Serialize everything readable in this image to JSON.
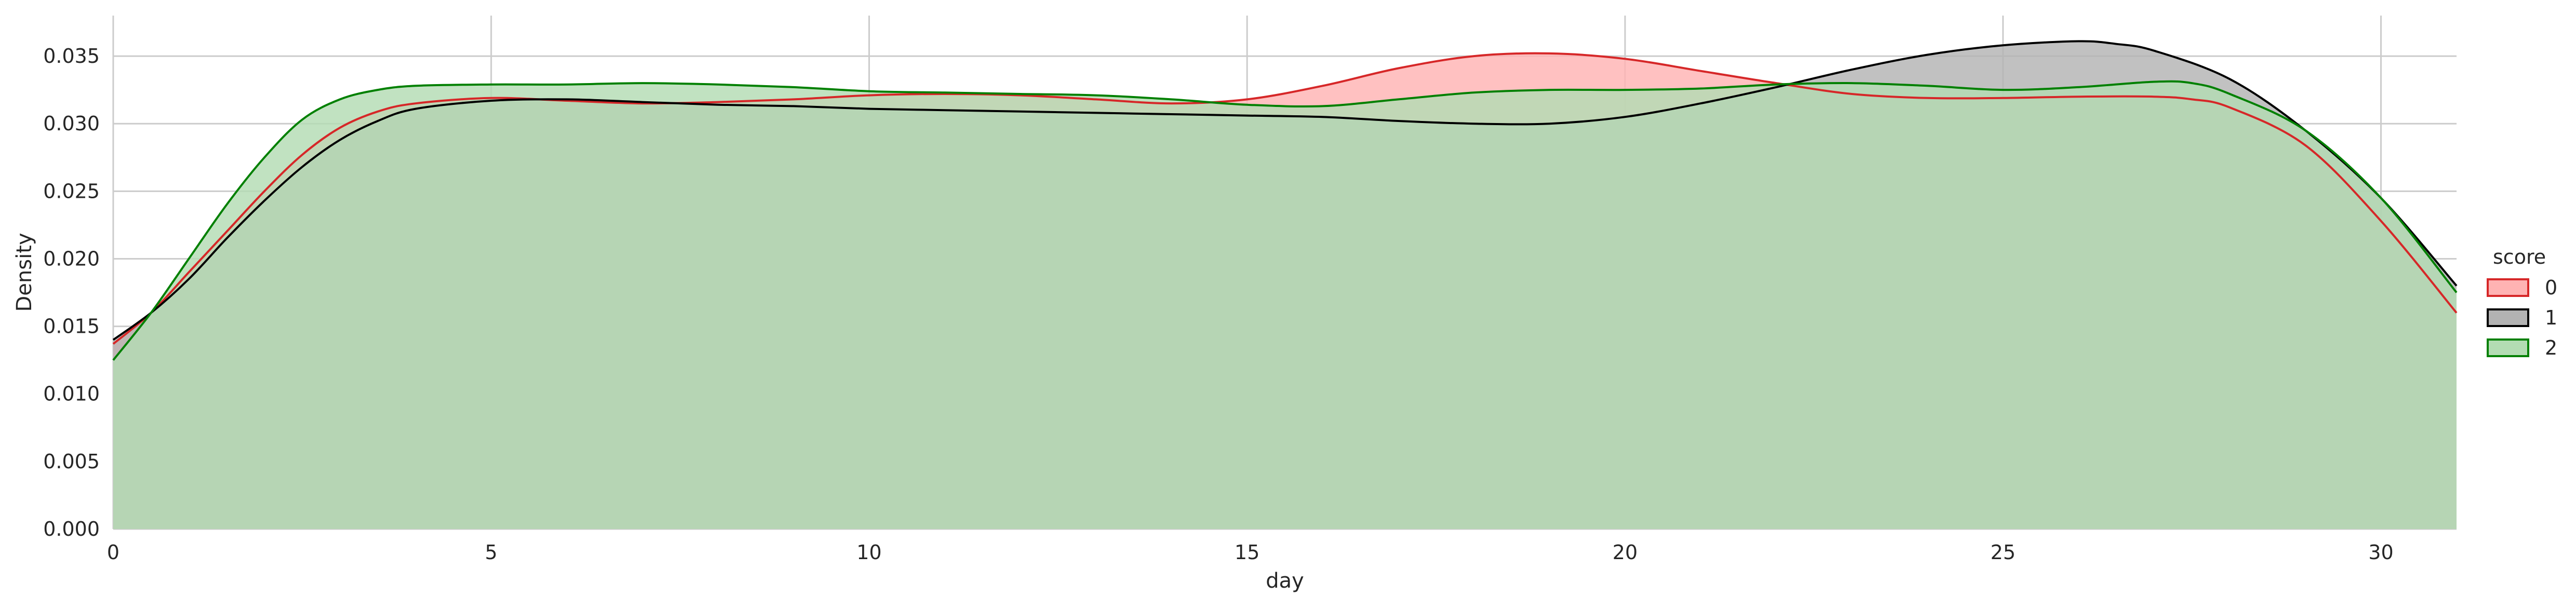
{
  "chart_data": {
    "type": "area",
    "xlabel": "day",
    "ylabel": "Density",
    "xlim": [
      0,
      31
    ],
    "ylim": [
      0,
      0.038
    ],
    "x_ticks": [
      "0",
      "5",
      "10",
      "15",
      "20",
      "25",
      "30"
    ],
    "y_ticks": [
      "0.000",
      "0.005",
      "0.010",
      "0.015",
      "0.020",
      "0.025",
      "0.030",
      "0.035"
    ],
    "grid": true,
    "legend": {
      "title": "score",
      "placement": "right"
    },
    "series": [
      {
        "name": "0",
        "color": "#d62728",
        "fill": "#ffb3b3",
        "x": [
          0,
          0.5,
          1,
          1.5,
          2,
          2.5,
          3,
          3.5,
          4,
          5,
          6,
          7,
          8,
          9,
          10,
          11,
          12,
          13,
          14,
          15,
          16,
          17,
          18,
          19,
          20,
          21,
          22,
          23,
          24,
          25,
          26,
          27,
          27.5,
          28,
          29,
          30,
          31
        ],
        "values": [
          0.0137,
          0.016,
          0.019,
          0.022,
          0.025,
          0.0277,
          0.0297,
          0.0309,
          0.0315,
          0.0319,
          0.0317,
          0.0315,
          0.0316,
          0.0318,
          0.0321,
          0.0322,
          0.0321,
          0.0318,
          0.0315,
          0.0318,
          0.0328,
          0.0341,
          0.035,
          0.0352,
          0.0348,
          0.0339,
          0.033,
          0.0322,
          0.0319,
          0.0319,
          0.032,
          0.032,
          0.0318,
          0.0312,
          0.0284,
          0.0228,
          0.016
        ]
      },
      {
        "name": "1",
        "color": "#000000",
        "fill": "#b3b3b3",
        "x": [
          0,
          0.5,
          1,
          1.5,
          2,
          2.5,
          3,
          3.5,
          4,
          5,
          6,
          7,
          8,
          9,
          10,
          11,
          12,
          13,
          14,
          15,
          16,
          17,
          18,
          19,
          20,
          21,
          22,
          23,
          24,
          25,
          26,
          26.5,
          27,
          28,
          29,
          30,
          31
        ],
        "values": [
          0.014,
          0.016,
          0.0185,
          0.0215,
          0.0243,
          0.0268,
          0.0288,
          0.0302,
          0.0311,
          0.0317,
          0.0318,
          0.0316,
          0.0314,
          0.0313,
          0.0311,
          0.031,
          0.0309,
          0.0308,
          0.0307,
          0.0306,
          0.0305,
          0.0302,
          0.03,
          0.03,
          0.0305,
          0.0315,
          0.0327,
          0.034,
          0.0351,
          0.0358,
          0.0361,
          0.0359,
          0.0354,
          0.0333,
          0.0295,
          0.0245,
          0.018
        ]
      },
      {
        "name": "2",
        "color": "#008000",
        "fill": "#b3dcb3",
        "x": [
          0,
          0.5,
          1,
          1.5,
          2,
          2.5,
          3,
          3.5,
          4,
          5,
          6,
          7,
          8,
          9,
          10,
          11,
          12,
          13,
          14,
          15,
          16,
          17,
          18,
          19,
          20,
          21,
          22,
          23,
          24,
          25,
          26,
          27,
          27.5,
          28,
          29,
          30,
          31
        ],
        "values": [
          0.0125,
          0.016,
          0.02,
          0.024,
          0.0275,
          0.0303,
          0.0318,
          0.0325,
          0.0328,
          0.0329,
          0.0329,
          0.033,
          0.0329,
          0.0327,
          0.0324,
          0.0323,
          0.0322,
          0.0321,
          0.0318,
          0.0314,
          0.0313,
          0.0318,
          0.0323,
          0.0325,
          0.0325,
          0.0326,
          0.0329,
          0.033,
          0.0328,
          0.0325,
          0.0327,
          0.0331,
          0.033,
          0.0322,
          0.0295,
          0.0245,
          0.0175
        ]
      }
    ]
  }
}
